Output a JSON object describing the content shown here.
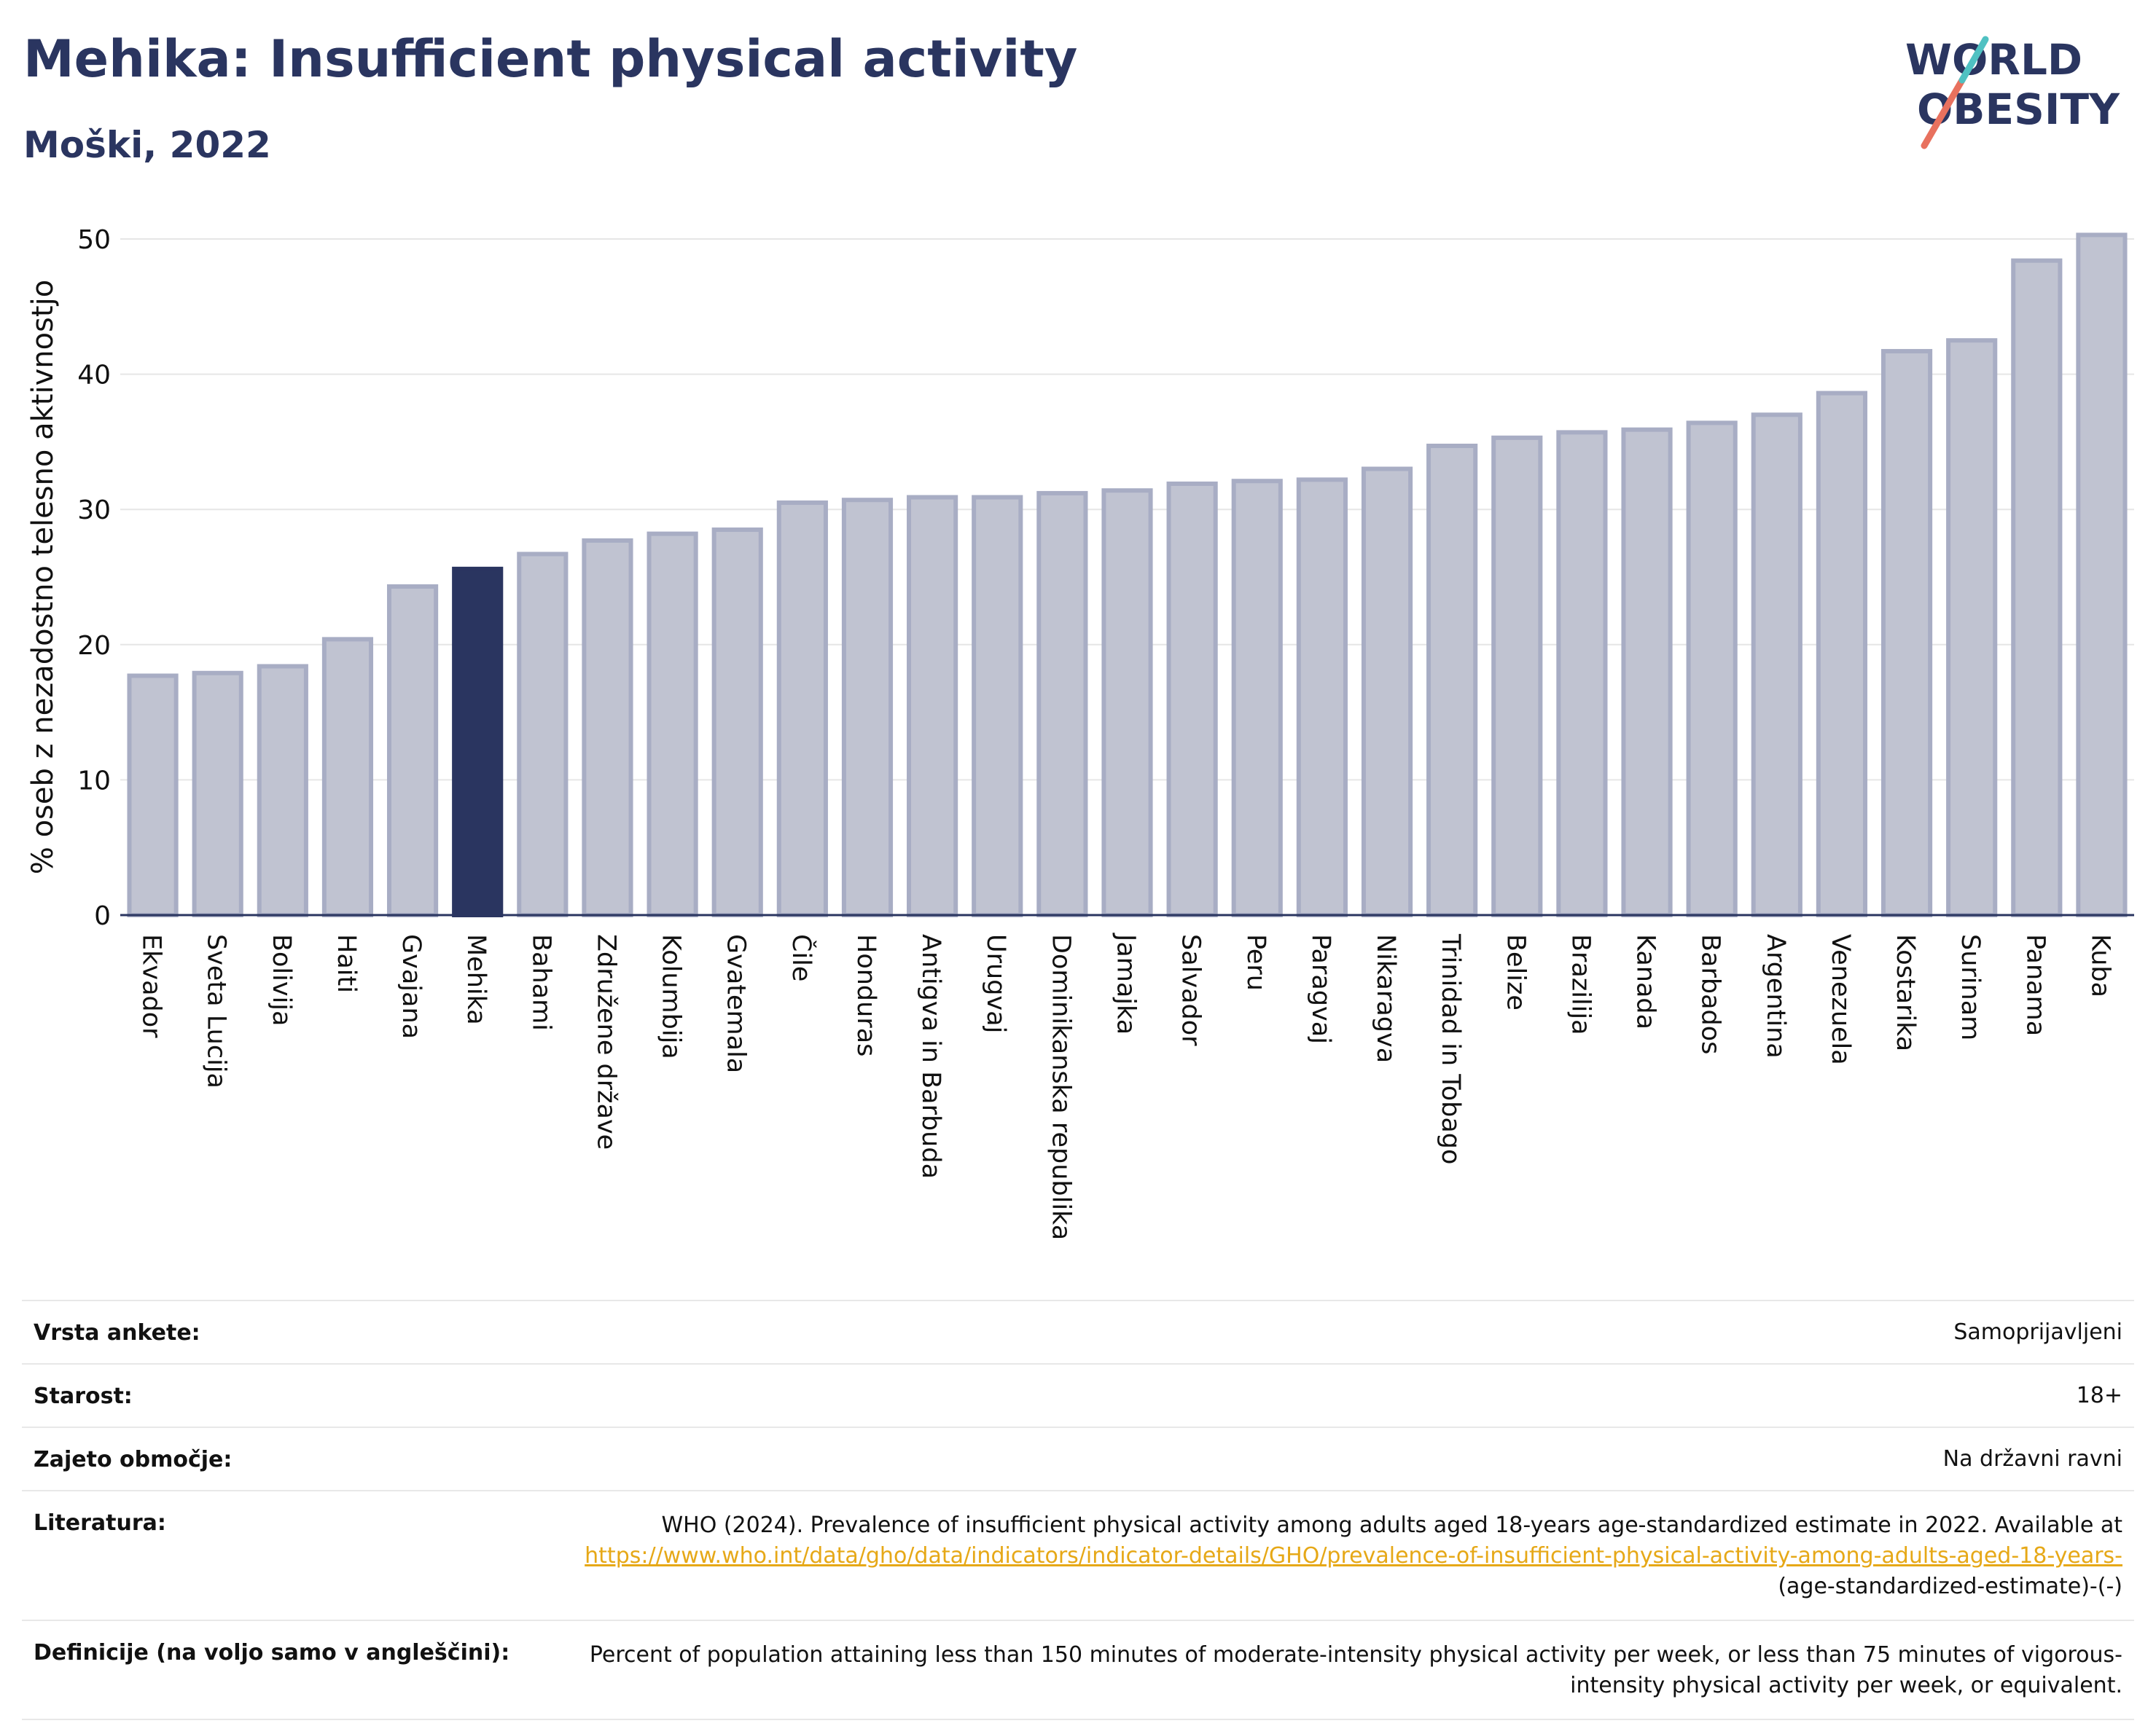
{
  "header": {
    "title": "Mehika: Insufficient physical activity",
    "subtitle": "Moški, 2022"
  },
  "logo": {
    "line1": "WORLD",
    "line2": "OBESITY",
    "text_color": "#2a3560",
    "slash_colors": [
      "#e8715e",
      "#4fc1c2"
    ]
  },
  "colors": {
    "bar_default": "#c0c3d1",
    "bar_border": "#a8adc4",
    "bar_highlight": "#2a3560",
    "gridline": "#e6e6e6",
    "axis": "#2a3560"
  },
  "chart_data": {
    "type": "bar",
    "title": "Mehika: Insufficient physical activity",
    "subtitle": "Moški, 2022",
    "xlabel": "",
    "ylabel": "% oseb z nezadostno telesno aktivnostjo",
    "ylim": [
      0,
      50
    ],
    "yticks": [
      0,
      10,
      20,
      30,
      40,
      50
    ],
    "grid": true,
    "highlight": "Mehika",
    "categories": [
      "Ekvador",
      "Sveta Lucija",
      "Bolivija",
      "Haiti",
      "Gvajana",
      "Mehika",
      "Bahami",
      "Združene države",
      "Kolumbija",
      "Gvatemala",
      "Čile",
      "Honduras",
      "Antigva in Barbuda",
      "Urugvaj",
      "Dominikanska republika",
      "Jamajka",
      "Salvador",
      "Peru",
      "Paragvaj",
      "Nikaragva",
      "Trinidad in Tobago",
      "Belize",
      "Brazilija",
      "Kanada",
      "Barbados",
      "Argentina",
      "Venezuela",
      "Kostarika",
      "Surinam",
      "Panama",
      "Kuba"
    ],
    "values": [
      17.7,
      17.9,
      18.4,
      20.4,
      24.3,
      25.6,
      26.7,
      27.7,
      28.2,
      28.5,
      30.5,
      30.7,
      30.9,
      30.9,
      31.2,
      31.4,
      31.9,
      32.1,
      32.2,
      33.0,
      34.7,
      35.3,
      35.7,
      35.9,
      36.4,
      37.0,
      38.6,
      41.7,
      42.5,
      48.4,
      50.3
    ]
  },
  "meta": {
    "rows": [
      {
        "label": "Vrsta ankete:",
        "value": "Samoprijavljeni"
      },
      {
        "label": "Starost:",
        "value": "18+"
      },
      {
        "label": "Zajeto območje:",
        "value": "Na državni ravni"
      },
      {
        "label": "Literatura:",
        "value": "WHO (2024). Prevalence of insufficient physical activity among adults aged 18-years age-standardized estimate in 2022. Available at",
        "link": "https://www.who.int/data/gho/data/indicators/indicator-details/GHO/prevalence-of-insufficient-physical-activity-among-adults-aged-18-years-",
        "suffix": "(age-standardized-estimate)-(-)"
      },
      {
        "label": "Definicije (na voljo samo v angleščini):",
        "value": "Percent of population attaining less than 150 minutes of moderate-intensity physical activity per week, or less than 75 minutes of vigorous-intensity physical activity per week, or equivalent."
      }
    ]
  }
}
